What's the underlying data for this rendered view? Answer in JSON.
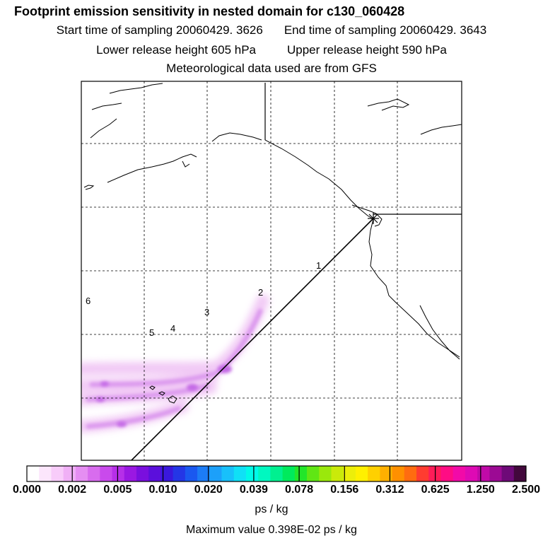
{
  "header": {
    "title": "Footprint emission sensitivity in nested domain for c130_060428",
    "start_label": "Start time of sampling 20060429.  3626",
    "end_label": "End time of sampling 20060429.  3643",
    "lower_label": "Lower release height  605 hPa",
    "upper_label": "Upper release height  590 hPa",
    "met_label": "Meteorological data used are from GFS"
  },
  "map": {
    "trajectory_markers": [
      "1",
      "2",
      "3",
      "4",
      "5",
      "6"
    ]
  },
  "colorbar": {
    "colors": [
      "#ffffff",
      "#fce6fc",
      "#f8ccfa",
      "#f0b0f6",
      "#e58ef2",
      "#d86cee",
      "#c94aec",
      "#b62fe8",
      "#9a18e2",
      "#7a0fde",
      "#5b0fdc",
      "#3a18dc",
      "#2436e6",
      "#1a58f0",
      "#1c7cf6",
      "#1ca0fa",
      "#18c0fa",
      "#10e0f6",
      "#00fae8",
      "#00f8c0",
      "#00f090",
      "#00ea5c",
      "#22e62a",
      "#60e614",
      "#9ae80c",
      "#caea0a",
      "#ecee0a",
      "#fff000",
      "#ffd000",
      "#ffb000",
      "#ff9000",
      "#ff6c10",
      "#ff3c30",
      "#ff1c58",
      "#ff0c84",
      "#f20aa8",
      "#de0ab4",
      "#c00aa8",
      "#9c0a94",
      "#6e0a78",
      "#42083c"
    ],
    "tick_labels": [
      "0.000",
      "0.002",
      "0.005",
      "0.010",
      "0.020",
      "0.039",
      "0.078",
      "0.156",
      "0.312",
      "0.625",
      "1.250",
      "2.500"
    ],
    "units": "ps / kg",
    "max_value": "Maximum value  0.398E-02 ps / kg"
  }
}
